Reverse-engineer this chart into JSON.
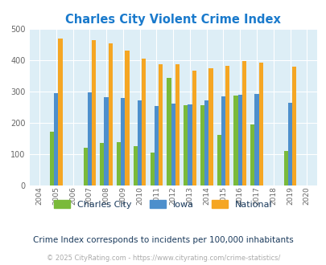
{
  "title": "Charles City Violent Crime Index",
  "years": [
    2005,
    2007,
    2008,
    2009,
    2010,
    2011,
    2012,
    2013,
    2014,
    2015,
    2016,
    2017,
    2019
  ],
  "charles_city": [
    172,
    121,
    135,
    138,
    126,
    105,
    344,
    257,
    257,
    163,
    287,
    194,
    110
  ],
  "iowa": [
    295,
    298,
    283,
    281,
    273,
    255,
    263,
    259,
    272,
    286,
    289,
    294,
    265
  ],
  "national": [
    469,
    465,
    454,
    431,
    405,
    387,
    387,
    366,
    376,
    383,
    397,
    393,
    379
  ],
  "charles_city_color": "#7aba3a",
  "iowa_color": "#4d8fcc",
  "national_color": "#f5a623",
  "bg_color": "#ddeef6",
  "title_color": "#1a7acc",
  "subtitle": "Crime Index corresponds to incidents per 100,000 inhabitants",
  "subtitle_color": "#1a3a5c",
  "copyright": "© 2025 CityRating.com - https://www.cityrating.com/crime-statistics/",
  "copyright_color": "#aaaaaa",
  "xlim": [
    2003.4,
    2020.6
  ],
  "ylim": [
    0,
    500
  ],
  "yticks": [
    0,
    100,
    200,
    300,
    400,
    500
  ],
  "all_years_ticks": [
    2004,
    2005,
    2006,
    2007,
    2008,
    2009,
    2010,
    2011,
    2012,
    2013,
    2014,
    2015,
    2016,
    2017,
    2018,
    2019,
    2020
  ],
  "bar_width": 0.25
}
